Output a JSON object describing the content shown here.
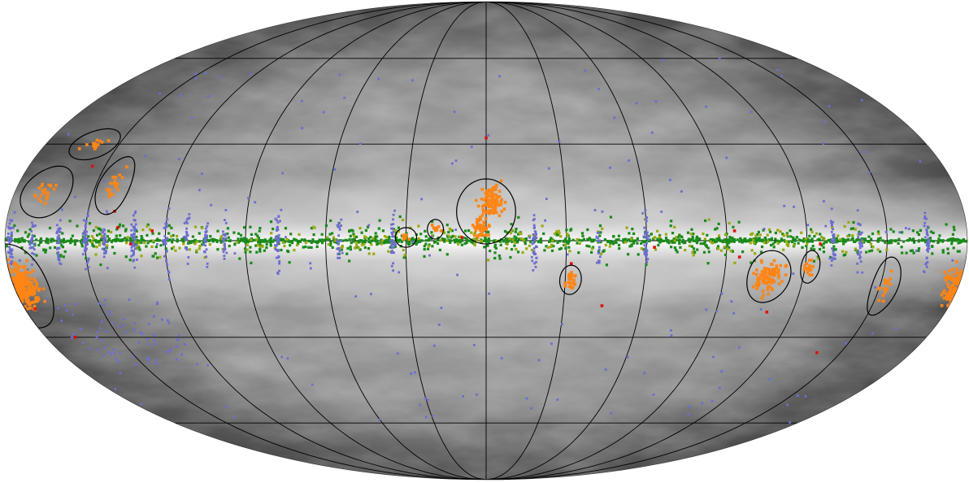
{
  "map": {
    "projection": "mollweide",
    "background_color": "#ffffff",
    "sky_colors": [
      "#3c3c3c",
      "#6e6e6e",
      "#a8a8a8",
      "#dcdcdc",
      "#f6f6f6"
    ],
    "graticule": {
      "color": "#000000",
      "meridian_step_deg": 30,
      "parallels_deg": [
        -60,
        -30,
        0,
        30,
        60
      ]
    },
    "point_classes": [
      {
        "id": "class-1",
        "color": "#1b8a1b"
      },
      {
        "id": "class-2",
        "color": "#9aaa10"
      },
      {
        "id": "class-3",
        "color": "#6d6dcf"
      },
      {
        "id": "class-4",
        "color": "#ff8515"
      },
      {
        "id": "class-5",
        "color": "#e01010"
      }
    ],
    "regions_outlined": [
      {
        "name": "region-1",
        "lon": 160,
        "lat": 30,
        "rx_deg": 8,
        "ry_deg": 5
      },
      {
        "name": "region-2",
        "lon": 168,
        "lat": 15,
        "rx_deg": 9,
        "ry_deg": 8
      },
      {
        "name": "region-3",
        "lon": 143,
        "lat": 17,
        "rx_deg": 6,
        "ry_deg": 9
      },
      {
        "name": "region-4",
        "lon": 30,
        "lat": 1,
        "rx_deg": 4,
        "ry_deg": 3
      },
      {
        "name": "region-5",
        "lon": 19,
        "lat": 3.5,
        "rx_deg": 3,
        "ry_deg": 3
      },
      {
        "name": "region-6",
        "lon": 0,
        "lat": 9,
        "rx_deg": 11,
        "ry_deg": 10
      },
      {
        "name": "region-7",
        "lon": -32,
        "lat": -12,
        "rx_deg": 4,
        "ry_deg": 4.5
      },
      {
        "name": "region-8",
        "lon": 180,
        "lat": -14,
        "rx_deg": 13,
        "ry_deg": 13
      },
      {
        "name": "region-9",
        "lon": -107,
        "lat": -11,
        "rx_deg": 8,
        "ry_deg": 8
      },
      {
        "name": "region-10",
        "lon": -122,
        "lat": -8,
        "rx_deg": 3.5,
        "ry_deg": 5
      },
      {
        "name": "region-11",
        "lon": -152,
        "lat": -14,
        "rx_deg": 5,
        "ry_deg": 9
      }
    ]
  }
}
